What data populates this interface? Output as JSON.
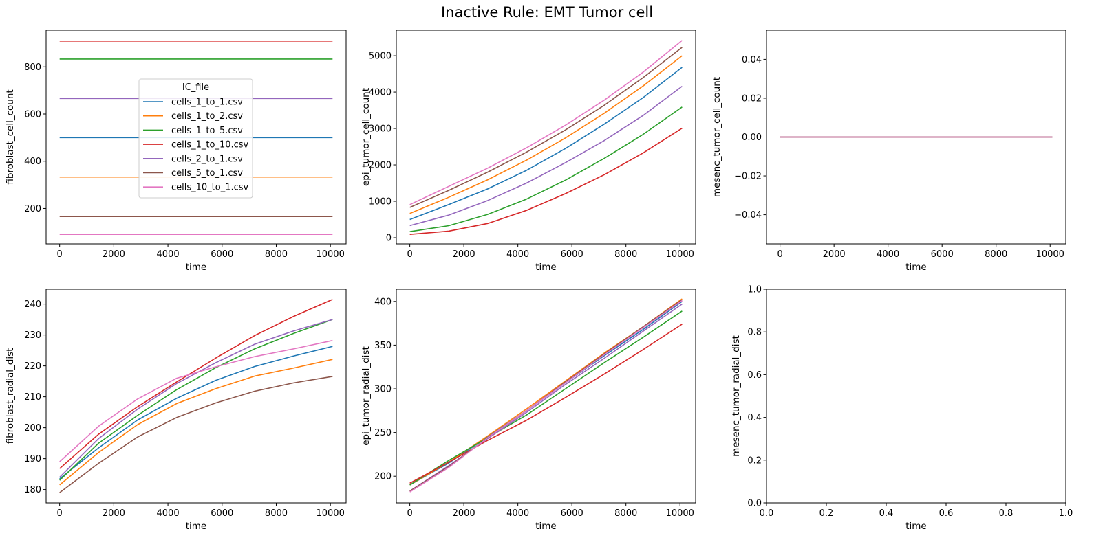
{
  "figure": {
    "title": "Inactive Rule: EMT Tumor cell"
  },
  "colors": {
    "cells_1_to_1.csv": "#1f77b4",
    "cells_1_to_2.csv": "#ff7f0e",
    "cells_1_to_5.csv": "#2ca02c",
    "cells_1_to_10.csv": "#d62728",
    "cells_2_to_1.csv": "#9467bd",
    "cells_5_to_1.csv": "#8c564b",
    "cells_10_to_1.csv": "#e377c2"
  },
  "chart_data": [
    {
      "type": "line",
      "xlabel": "time",
      "ylabel": "fibroblast_cell_count",
      "xlim": [
        -500,
        10580
      ],
      "ylim": [
        50,
        955
      ],
      "xticks": [
        0,
        2000,
        4000,
        6000,
        8000,
        10000
      ],
      "yticks": [
        200,
        400,
        600,
        800
      ],
      "legend": {
        "title": "IC_file",
        "placement": "upper center",
        "entries": [
          "cells_1_to_1.csv",
          "cells_1_to_2.csv",
          "cells_1_to_5.csv",
          "cells_1_to_10.csv",
          "cells_2_to_1.csv",
          "cells_5_to_1.csv",
          "cells_10_to_1.csv"
        ]
      },
      "series": [
        {
          "name": "cells_1_to_1.csv",
          "x": [
            0,
            1440,
            2880,
            4320,
            5760,
            7200,
            8640,
            10080
          ],
          "y": [
            500,
            500,
            500,
            500,
            500,
            500,
            500,
            500
          ]
        },
        {
          "name": "cells_1_to_2.csv",
          "x": [
            0,
            1440,
            2880,
            4320,
            5760,
            7200,
            8640,
            10080
          ],
          "y": [
            333,
            333,
            333,
            333,
            333,
            333,
            333,
            333
          ]
        },
        {
          "name": "cells_1_to_5.csv",
          "x": [
            0,
            1440,
            2880,
            4320,
            5760,
            7200,
            8640,
            10080
          ],
          "y": [
            833,
            833,
            833,
            833,
            833,
            833,
            833,
            833
          ]
        },
        {
          "name": "cells_1_to_10.csv",
          "x": [
            0,
            1440,
            2880,
            4320,
            5760,
            7200,
            8640,
            10080
          ],
          "y": [
            909,
            909,
            909,
            909,
            909,
            909,
            909,
            909
          ]
        },
        {
          "name": "cells_2_to_1.csv",
          "x": [
            0,
            1440,
            2880,
            4320,
            5760,
            7200,
            8640,
            10080
          ],
          "y": [
            666,
            666,
            666,
            666,
            666,
            666,
            666,
            666
          ]
        },
        {
          "name": "cells_5_to_1.csv",
          "x": [
            0,
            1440,
            2880,
            4320,
            5760,
            7200,
            8640,
            10080
          ],
          "y": [
            166,
            166,
            166,
            166,
            166,
            166,
            166,
            166
          ]
        },
        {
          "name": "cells_10_to_1.csv",
          "x": [
            0,
            1440,
            2880,
            4320,
            5760,
            7200,
            8640,
            10080
          ],
          "y": [
            90,
            90,
            90,
            90,
            90,
            90,
            90,
            90
          ]
        }
      ]
    },
    {
      "type": "line",
      "xlabel": "time",
      "ylabel": "epi_tumor_cell_count",
      "xlim": [
        -500,
        10580
      ],
      "ylim": [
        -170,
        5700
      ],
      "xticks": [
        0,
        2000,
        4000,
        6000,
        8000,
        10000
      ],
      "yticks": [
        0,
        1000,
        2000,
        3000,
        4000,
        5000
      ],
      "series": [
        {
          "name": "cells_1_to_1.csv",
          "x": [
            0,
            1440,
            2880,
            4320,
            5760,
            7200,
            8640,
            10080
          ],
          "y": [
            500,
            910,
            1340,
            1850,
            2450,
            3120,
            3850,
            4680
          ]
        },
        {
          "name": "cells_1_to_2.csv",
          "x": [
            0,
            1440,
            2880,
            4320,
            5760,
            7200,
            8640,
            10080
          ],
          "y": [
            666,
            1110,
            1590,
            2130,
            2740,
            3420,
            4170,
            5000
          ]
        },
        {
          "name": "cells_1_to_5.csv",
          "x": [
            0,
            1440,
            2880,
            4320,
            5760,
            7200,
            8640,
            10080
          ],
          "y": [
            166,
            330,
            640,
            1060,
            1580,
            2180,
            2840,
            3590
          ]
        },
        {
          "name": "cells_1_to_10.csv",
          "x": [
            0,
            1440,
            2880,
            4320,
            5760,
            7200,
            8640,
            10080
          ],
          "y": [
            90,
            180,
            390,
            750,
            1210,
            1730,
            2330,
            3010
          ]
        },
        {
          "name": "cells_2_to_1.csv",
          "x": [
            0,
            1440,
            2880,
            4320,
            5760,
            7200,
            8640,
            10080
          ],
          "y": [
            333,
            620,
            1020,
            1500,
            2060,
            2670,
            3360,
            4160
          ]
        },
        {
          "name": "cells_5_to_1.csv",
          "x": [
            0,
            1440,
            2880,
            4320,
            5760,
            7200,
            8640,
            10080
          ],
          "y": [
            833,
            1300,
            1800,
            2350,
            2960,
            3640,
            4400,
            5230
          ]
        },
        {
          "name": "cells_10_to_1.csv",
          "x": [
            0,
            1440,
            2880,
            4320,
            5760,
            7200,
            8640,
            10080
          ],
          "y": [
            909,
            1410,
            1910,
            2470,
            3090,
            3780,
            4550,
            5420
          ]
        }
      ]
    },
    {
      "type": "line",
      "xlabel": "time",
      "ylabel": "mesenc_tumor_cell_count",
      "xlim": [
        -500,
        10580
      ],
      "ylim": [
        -0.055,
        0.055
      ],
      "xticks": [
        0,
        2000,
        4000,
        6000,
        8000,
        10000
      ],
      "yticks": [
        -0.04,
        -0.02,
        0.0,
        0.02,
        0.04
      ],
      "yticklabels": [
        "−0.04",
        "−0.02",
        "0.00",
        "0.02",
        "0.04"
      ],
      "series": [
        {
          "name": "cells_1_to_1.csv",
          "x": [
            0,
            10080
          ],
          "y": [
            0,
            0
          ]
        },
        {
          "name": "cells_1_to_2.csv",
          "x": [
            0,
            10080
          ],
          "y": [
            0,
            0
          ]
        },
        {
          "name": "cells_1_to_5.csv",
          "x": [
            0,
            10080
          ],
          "y": [
            0,
            0
          ]
        },
        {
          "name": "cells_1_to_10.csv",
          "x": [
            0,
            10080
          ],
          "y": [
            0,
            0
          ]
        },
        {
          "name": "cells_2_to_1.csv",
          "x": [
            0,
            10080
          ],
          "y": [
            0,
            0
          ]
        },
        {
          "name": "cells_5_to_1.csv",
          "x": [
            0,
            10080
          ],
          "y": [
            0,
            0
          ]
        },
        {
          "name": "cells_10_to_1.csv",
          "x": [
            0,
            10080
          ],
          "y": [
            0,
            0
          ]
        }
      ]
    },
    {
      "type": "line",
      "xlabel": "time",
      "ylabel": "fibroblast_radial_dist",
      "xlim": [
        -500,
        10580
      ],
      "ylim": [
        175.7,
        244.8
      ],
      "xticks": [
        0,
        2000,
        4000,
        6000,
        8000,
        10000
      ],
      "yticks": [
        180,
        190,
        200,
        210,
        220,
        230,
        240
      ],
      "series": [
        {
          "name": "cells_1_to_1.csv",
          "x": [
            0,
            1440,
            2880,
            4320,
            5760,
            7200,
            8640,
            10080
          ],
          "y": [
            183.5,
            193.5,
            202.5,
            209.5,
            215.3,
            219.8,
            223.2,
            226.3
          ]
        },
        {
          "name": "cells_1_to_2.csv",
          "x": [
            0,
            1440,
            2880,
            4320,
            5760,
            7200,
            8640,
            10080
          ],
          "y": [
            181.5,
            192.0,
            201.0,
            207.8,
            212.6,
            216.7,
            219.3,
            222.1
          ]
        },
        {
          "name": "cells_1_to_5.csv",
          "x": [
            0,
            1440,
            2880,
            4320,
            5760,
            7200,
            8640,
            10080
          ],
          "y": [
            183.0,
            195.0,
            204.0,
            212.3,
            219.4,
            225.5,
            230.5,
            235.0
          ]
        },
        {
          "name": "cells_1_to_10.csv",
          "x": [
            0,
            1440,
            2880,
            4320,
            5760,
            7200,
            8640,
            10080
          ],
          "y": [
            186.8,
            197.9,
            206.8,
            214.8,
            222.5,
            229.8,
            236.0,
            241.5
          ]
        },
        {
          "name": "cells_2_to_1.csv",
          "x": [
            0,
            1440,
            2880,
            4320,
            5760,
            7200,
            8640,
            10080
          ],
          "y": [
            184.0,
            196.5,
            206.0,
            214.3,
            221.0,
            227.0,
            231.3,
            235.0
          ]
        },
        {
          "name": "cells_5_to_1.csv",
          "x": [
            0,
            1440,
            2880,
            4320,
            5760,
            7200,
            8640,
            10080
          ],
          "y": [
            179.0,
            188.5,
            197.0,
            203.3,
            208.0,
            211.8,
            214.5,
            216.6
          ]
        },
        {
          "name": "cells_10_to_1.csv",
          "x": [
            0,
            1440,
            2880,
            4320,
            5760,
            7200,
            8640,
            10080
          ],
          "y": [
            189.0,
            200.5,
            209.3,
            216.0,
            219.7,
            223.0,
            225.5,
            228.2
          ]
        }
      ]
    },
    {
      "type": "line",
      "xlabel": "time",
      "ylabel": "epi_tumor_radial_dist",
      "xlim": [
        -500,
        10580
      ],
      "ylim": [
        169.5,
        414
      ],
      "xticks": [
        0,
        2000,
        4000,
        6000,
        8000,
        10000
      ],
      "yticks": [
        200,
        250,
        300,
        350,
        400
      ],
      "series": [
        {
          "name": "cells_1_to_1.csv",
          "x": [
            0,
            1440,
            2880,
            4320,
            5760,
            7200,
            8640,
            10080
          ],
          "y": [
            190,
            215,
            245,
            275,
            307,
            338,
            368,
            400
          ]
        },
        {
          "name": "cells_1_to_2.csv",
          "x": [
            0,
            1440,
            2880,
            4320,
            5760,
            7200,
            8640,
            10080
          ],
          "y": [
            190,
            216,
            246,
            277,
            309,
            341,
            371,
            403
          ]
        },
        {
          "name": "cells_1_to_5.csv",
          "x": [
            0,
            1440,
            2880,
            4320,
            5760,
            7200,
            8640,
            10080
          ],
          "y": [
            190,
            218,
            244,
            270,
            300,
            330,
            359,
            389
          ]
        },
        {
          "name": "cells_1_to_10.csv",
          "x": [
            0,
            1440,
            2880,
            4320,
            5760,
            7200,
            8640,
            10080
          ],
          "y": [
            192,
            216,
            241,
            264,
            290,
            317,
            345,
            374
          ]
        },
        {
          "name": "cells_2_to_1.csv",
          "x": [
            0,
            1440,
            2880,
            4320,
            5760,
            7200,
            8640,
            10080
          ],
          "y": [
            183,
            212,
            243,
            273,
            305,
            335,
            366,
            397
          ]
        },
        {
          "name": "cells_5_to_1.csv",
          "x": [
            0,
            1440,
            2880,
            4320,
            5760,
            7200,
            8640,
            10080
          ],
          "y": [
            183,
            211,
            244,
            275,
            308,
            340,
            371,
            402
          ]
        },
        {
          "name": "cells_10_to_1.csv",
          "x": [
            0,
            1440,
            2880,
            4320,
            5760,
            7200,
            8640,
            10080
          ],
          "y": [
            182,
            210,
            244,
            275,
            307,
            339,
            370,
            401
          ]
        }
      ]
    },
    {
      "type": "line",
      "xlabel": "time",
      "ylabel": "mesenc_tumor_radial_dist",
      "xlim": [
        0,
        1
      ],
      "ylim": [
        0,
        1
      ],
      "xticks": [
        0,
        0.2,
        0.4,
        0.6,
        0.8,
        1
      ],
      "xticklabels": [
        "0.0",
        "0.2",
        "0.4",
        "0.6",
        "0.8",
        "1.0"
      ],
      "yticks": [
        0,
        0.2,
        0.4,
        0.6,
        0.8,
        1
      ],
      "yticklabels": [
        "0.0",
        "0.2",
        "0.4",
        "0.6",
        "0.8",
        "1.0"
      ],
      "series": []
    }
  ]
}
